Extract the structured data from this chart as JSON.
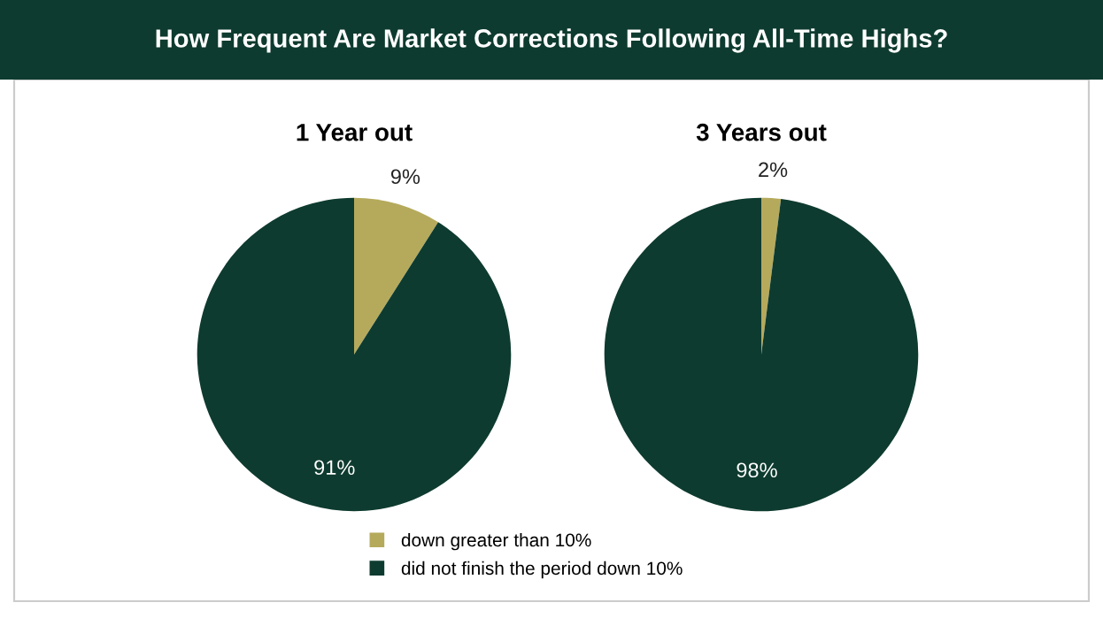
{
  "chart_data": [
    {
      "type": "pie",
      "title": "How Frequent Are Market Corrections Following All-Time Highs?",
      "subtitle": "1 Year out",
      "categories": [
        "down greater than 10%",
        "did not finish the period down 10%"
      ],
      "values": [
        9,
        91
      ],
      "value_labels": [
        "9%",
        "91%"
      ],
      "colors": [
        "#b5aa5c",
        "#0e3b2f"
      ],
      "legend": "bottom"
    },
    {
      "type": "pie",
      "subtitle": "3 Years out",
      "values": [
        2,
        98
      ],
      "value_labels": [
        "2%",
        "98%"
      ],
      "colors": [
        "#b5aa5c",
        "#0e3b2f"
      ]
    }
  ]
}
